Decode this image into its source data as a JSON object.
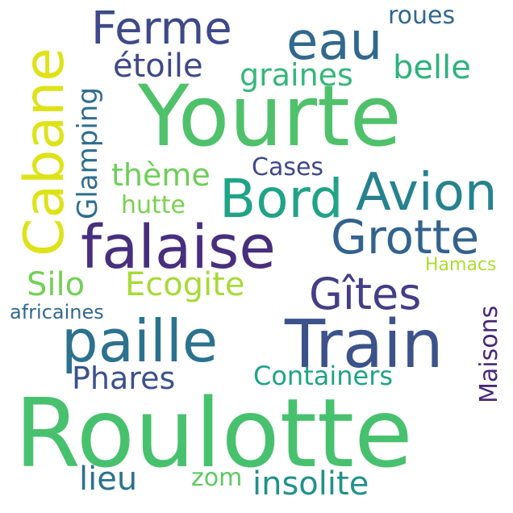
{
  "words": [
    {
      "text": "Yourte",
      "color": "#4fc16b"
    },
    {
      "text": "Roulotte",
      "color": "#48c16e"
    },
    {
      "text": "Train",
      "color": "#3b528b"
    },
    {
      "text": "paille",
      "color": "#2c728e"
    },
    {
      "text": "falaise",
      "color": "#472f7d"
    },
    {
      "text": "Cabane",
      "color": "#dde318"
    },
    {
      "text": "Bord",
      "color": "#20a386"
    },
    {
      "text": "Avion",
      "color": "#26828e"
    },
    {
      "text": "Grotte",
      "color": "#33638d"
    },
    {
      "text": "eau",
      "color": "#31688e"
    },
    {
      "text": "Ferme",
      "color": "#3e4989"
    },
    {
      "text": "Gîtes",
      "color": "#433e85"
    },
    {
      "text": "Ecogite",
      "color": "#a5db36"
    },
    {
      "text": "Silo",
      "color": "#73d056"
    },
    {
      "text": "Phares",
      "color": "#3b528b"
    },
    {
      "text": "Containers",
      "color": "#20a386"
    },
    {
      "text": "Maisons",
      "color": "#482878"
    },
    {
      "text": "insolite",
      "color": "#21918c"
    },
    {
      "text": "lieu",
      "color": "#2c728e"
    },
    {
      "text": "zom",
      "color": "#5ec962"
    },
    {
      "text": "Glamping",
      "color": "#2e6e8e"
    },
    {
      "text": "étoile",
      "color": "#3e4989"
    },
    {
      "text": "graines",
      "color": "#35b779"
    },
    {
      "text": "belle",
      "color": "#2db27d"
    },
    {
      "text": "roues",
      "color": "#31688e"
    },
    {
      "text": "thème",
      "color": "#6ece58"
    },
    {
      "text": "Cases",
      "color": "#3e4989"
    },
    {
      "text": "hutte",
      "color": "#7ad151"
    },
    {
      "text": "Hamacs",
      "color": "#addc30"
    },
    {
      "text": "africaines",
      "color": "#31688e"
    }
  ]
}
